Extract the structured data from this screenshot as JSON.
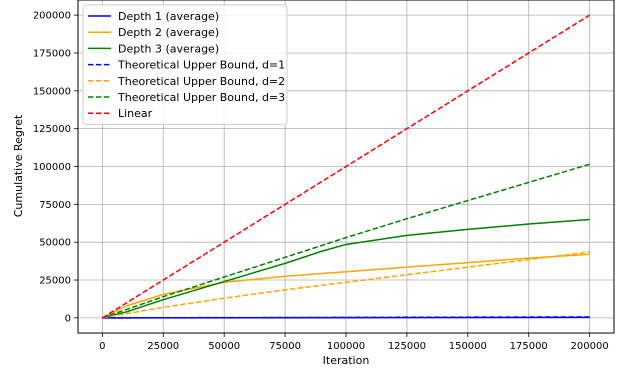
{
  "chart_data": {
    "type": "line",
    "title": "",
    "xlabel": "Iteration",
    "ylabel": "Cumulative Regret",
    "xlim": [
      -10000,
      210000
    ],
    "ylim": [
      -10000,
      210000
    ],
    "xticks": [
      0,
      25000,
      50000,
      75000,
      100000,
      125000,
      150000,
      175000,
      200000
    ],
    "yticks": [
      0,
      25000,
      50000,
      75000,
      100000,
      125000,
      150000,
      175000,
      200000
    ],
    "grid": true,
    "legend_position": "top-left",
    "series": [
      {
        "name": "Depth 1 (average)",
        "color": "#0000ff",
        "style": "solid",
        "x": [
          0,
          200000
        ],
        "y": [
          0,
          300
        ]
      },
      {
        "name": "Depth 2 (average)",
        "color": "#ffa500",
        "style": "solid",
        "x": [
          0,
          10000,
          25000,
          50000,
          75000,
          100000,
          125000,
          150000,
          175000,
          200000
        ],
        "y": [
          0,
          8000,
          15500,
          23500,
          27500,
          30500,
          33500,
          36500,
          39500,
          42000
        ]
      },
      {
        "name": "Depth 3 (average)",
        "color": "#008000",
        "style": "solid",
        "x": [
          0,
          10000,
          25000,
          50000,
          75000,
          90000,
          100000,
          125000,
          150000,
          175000,
          200000
        ],
        "y": [
          0,
          4000,
          12000,
          24000,
          36000,
          44000,
          48500,
          54500,
          58500,
          62000,
          65000
        ]
      },
      {
        "name": "Theoretical Upper Bound, d=1",
        "color": "#0000ff",
        "style": "dashed",
        "x": [
          0,
          200000
        ],
        "y": [
          0,
          600
        ]
      },
      {
        "name": "Theoretical Upper Bound, d=2",
        "color": "#ffa500",
        "style": "dashed",
        "x": [
          0,
          25000,
          50000,
          75000,
          100000,
          125000,
          150000,
          175000,
          200000
        ],
        "y": [
          0,
          7000,
          13000,
          18500,
          23500,
          28500,
          33500,
          38500,
          43500
        ]
      },
      {
        "name": "Theoretical Upper Bound, d=3",
        "color": "#008000",
        "style": "dashed",
        "x": [
          0,
          25000,
          50000,
          75000,
          100000,
          125000,
          150000,
          175000,
          200000
        ],
        "y": [
          0,
          14000,
          27000,
          40000,
          53000,
          65500,
          77500,
          89500,
          101500
        ]
      },
      {
        "name": "Linear",
        "color": "#ff0000",
        "style": "dashed",
        "x": [
          0,
          200000
        ],
        "y": [
          0,
          200000
        ]
      }
    ]
  }
}
